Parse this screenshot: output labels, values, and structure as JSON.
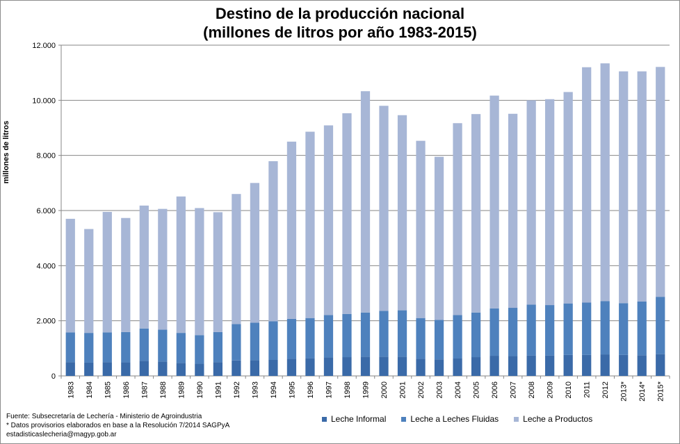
{
  "chart_data": {
    "type": "bar",
    "stacked": true,
    "title": "Destino de la producción nacional",
    "subtitle": "(millones de litros por año 1983-2015)",
    "ylabel": "millones de litros",
    "xlabel": "",
    "ylim": [
      0,
      12000
    ],
    "yticks": [
      0,
      2000,
      4000,
      6000,
      8000,
      10000,
      12000
    ],
    "ytick_labels": [
      "0",
      "2.000",
      "4.000",
      "6.000",
      "8.000",
      "10.000",
      "12.000"
    ],
    "grid": true,
    "legend_position": "bottom",
    "categories": [
      "1983",
      "1984",
      "1985",
      "1986",
      "1987",
      "1988",
      "1989",
      "1990",
      "1991",
      "1992",
      "1993",
      "1994",
      "1995",
      "1996",
      "1997",
      "1998",
      "1999",
      "2000",
      "2001",
      "2002",
      "2003",
      "2004",
      "2005",
      "2006",
      "2007",
      "2008",
      "2009",
      "2010",
      "2011",
      "2012",
      "2013*",
      "2014*",
      "2015*"
    ],
    "series": [
      {
        "name": "Leche Informal",
        "color": "#3a6aa8",
        "values": [
          500,
          480,
          500,
          490,
          550,
          520,
          470,
          440,
          500,
          560,
          570,
          580,
          620,
          640,
          670,
          680,
          700,
          700,
          700,
          620,
          600,
          630,
          680,
          730,
          720,
          740,
          740,
          760,
          760,
          780,
          760,
          750,
          790
        ]
      },
      {
        "name": "Leche a Leches Fluidas",
        "color": "#4e81bd",
        "values": [
          1080,
          1080,
          1080,
          1100,
          1170,
          1160,
          1090,
          1040,
          1090,
          1320,
          1360,
          1400,
          1450,
          1460,
          1540,
          1570,
          1600,
          1660,
          1680,
          1480,
          1430,
          1580,
          1620,
          1720,
          1750,
          1850,
          1830,
          1870,
          1900,
          1930,
          1880,
          1950,
          2080
        ]
      },
      {
        "name": "Leche a Productos",
        "color": "#a7b6d6",
        "values": [
          4120,
          3770,
          4370,
          4140,
          4460,
          4380,
          4950,
          4610,
          4350,
          4720,
          5070,
          5810,
          6430,
          6760,
          6880,
          7280,
          8030,
          7440,
          7080,
          6430,
          5920,
          6960,
          7200,
          7720,
          7040,
          7410,
          7470,
          7670,
          8540,
          8630,
          8410,
          8350,
          8340
        ]
      }
    ]
  },
  "source": {
    "line1": "Fuente: Subsecretaría de Lechería - Ministerio de Agroindustria",
    "line2": "* Datos provisorios  elaborados en base a la Resolución 7/2014 SAGPyA",
    "line3": "estadisticaslecheria@magyp.gob.ar"
  }
}
